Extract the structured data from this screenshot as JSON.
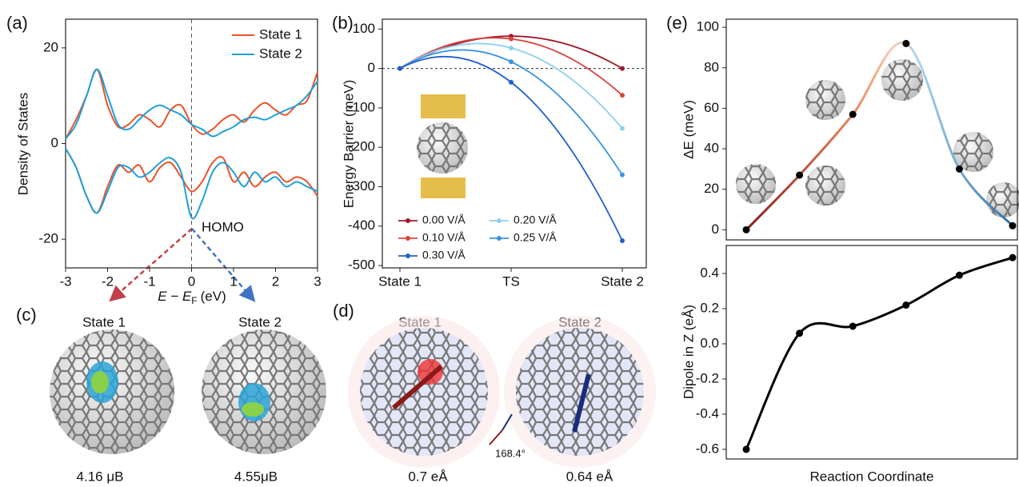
{
  "chart_data": [
    {
      "type": "line",
      "panel_label": "(a)",
      "y_label": "Density of States",
      "x_label": {
        "var": "E − E",
        "sub": "F",
        "unit": "(eV)"
      },
      "annotation": "HOMO",
      "x": [
        -3,
        -2.75,
        -2.5,
        -2.25,
        -2,
        -1.75,
        -1.5,
        -1.25,
        -1,
        -0.75,
        -0.5,
        -0.25,
        0,
        0.25,
        0.5,
        0.75,
        1,
        1.25,
        1.5,
        1.75,
        2,
        2.25,
        2.5,
        2.75,
        3
      ],
      "xlim": [
        -3,
        3
      ],
      "xticks": [
        -3,
        -2,
        -1,
        0,
        1,
        2,
        3
      ],
      "ylim": [
        -26,
        26
      ],
      "yticks": [
        -20,
        0,
        20
      ],
      "legend": "upper right",
      "series": [
        {
          "name": "State 1",
          "color": "#e8542a",
          "values": [
            1,
            5,
            10,
            15.5,
            8,
            3.5,
            4,
            6,
            5,
            3.5,
            7,
            8,
            4,
            2,
            3,
            5,
            6,
            4.5,
            7,
            8.5,
            7,
            6,
            8,
            9,
            15
          ],
          "values_down": [
            -1,
            -5,
            -11,
            -14.5,
            -9,
            -4.5,
            -6,
            -4.5,
            -8,
            -5,
            -4,
            -7,
            -10,
            -8,
            -4,
            -3,
            -8,
            -6,
            -9,
            -7,
            -6,
            -8,
            -7,
            -8,
            -11
          ]
        },
        {
          "name": "State 2",
          "color": "#1ea0dc",
          "values": [
            1,
            4,
            10,
            15.5,
            10,
            4,
            3,
            5,
            7,
            8,
            7,
            6,
            4,
            3,
            1.5,
            2.5,
            3.5,
            5,
            5.5,
            5,
            6,
            7,
            8,
            10,
            13
          ],
          "values_down": [
            -1,
            -5,
            -11,
            -14.5,
            -10,
            -5,
            -5,
            -7,
            -6,
            -4,
            -3,
            -6,
            -15.5,
            -12,
            -6,
            -4,
            -6,
            -9,
            -6,
            -8,
            -7,
            -9,
            -8,
            -9,
            -10
          ]
        }
      ]
    },
    {
      "type": "curve",
      "panel_label": "(b)",
      "y_label": "Energy Barrier (meV)",
      "categories": [
        "State 1",
        "TS",
        "State 2"
      ],
      "ylim": [
        -506,
        125
      ],
      "yticks": [
        -500,
        -400,
        -300,
        -200,
        -100,
        0,
        100
      ],
      "legend": "lower left",
      "series": [
        {
          "name": "0.00 V/Å",
          "color": "#a0182a",
          "values": [
            0,
            82,
            0
          ]
        },
        {
          "name": "0.10 V/Å",
          "color": "#d9453f",
          "values": [
            0,
            75,
            -68
          ]
        },
        {
          "name": "0.20 V/Å",
          "color": "#8ecff0",
          "values": [
            0,
            52,
            -152
          ]
        },
        {
          "name": "0.25 V/Å",
          "color": "#3a93e0",
          "values": [
            0,
            17,
            -270
          ]
        },
        {
          "name": "0.30 V/Å",
          "color": "#1f5fcf",
          "values": [
            0,
            -35,
            -437
          ]
        }
      ]
    },
    {
      "type": "gradient-line",
      "panel_label": "(e)",
      "y_label": "ΔE (meV)",
      "categories": [
        null,
        null,
        null,
        null,
        null,
        null
      ],
      "ylim": [
        -5,
        104
      ],
      "yticks": [
        0,
        20,
        40,
        60,
        80,
        100
      ],
      "values": [
        0,
        27,
        57,
        92,
        30,
        2
      ],
      "color": "#000000"
    },
    {
      "type": "line",
      "y_label": "Dipole in Z (eÅ)",
      "x_label": "Reaction Coordinate",
      "categories": [
        null,
        null,
        null,
        null,
        null,
        null
      ],
      "ylim": [
        -0.655,
        0.559
      ],
      "yticks": [
        -0.6,
        -0.4,
        -0.2,
        {
          "value": 0,
          "label": "0.0"
        },
        0.2,
        0.4
      ],
      "values": [
        -0.6,
        0.06,
        0.1,
        0.22,
        0.39,
        0.49
      ],
      "color": "#000000"
    }
  ],
  "panel_c": {
    "label": "(c)",
    "states": [
      "State 1",
      "State 2"
    ],
    "moments": [
      "4.16 μB",
      "4.55μB"
    ]
  },
  "panel_d": {
    "label": "(d)",
    "states": [
      "State 1",
      "State 2"
    ],
    "dipoles": [
      "0.7 eÅ",
      "0.64 eÅ"
    ],
    "angle": "168.4°"
  }
}
